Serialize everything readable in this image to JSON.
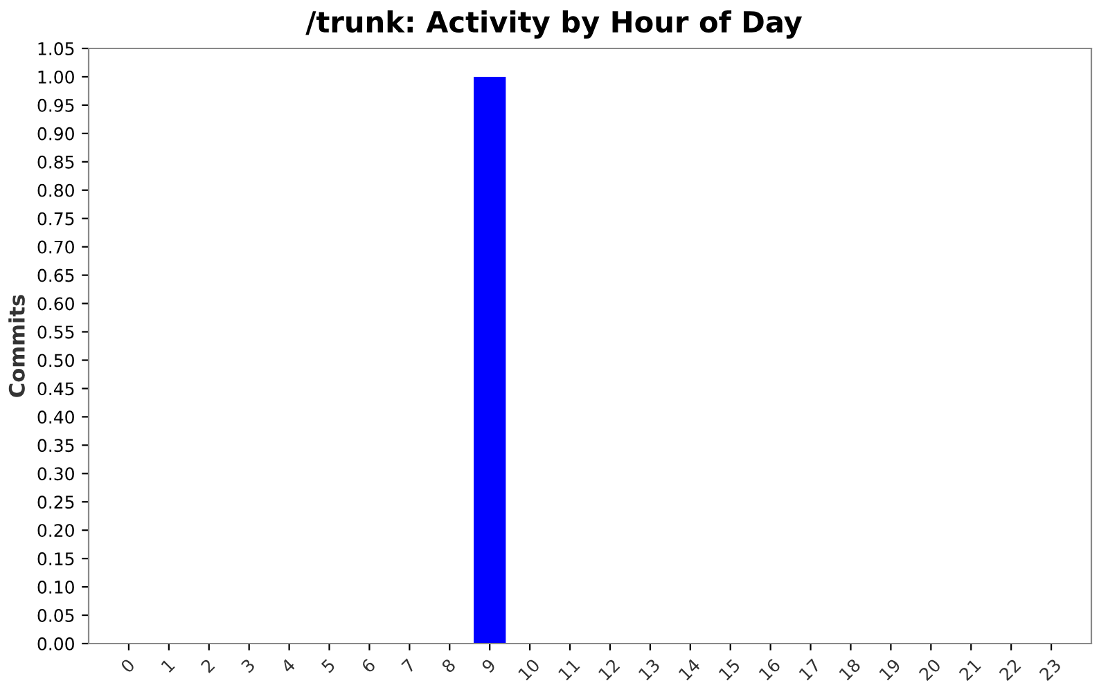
{
  "chart_data": {
    "type": "bar",
    "title": "/trunk: Activity by Hour of Day",
    "ylabel": "Commits",
    "categories": [
      "0",
      "1",
      "2",
      "3",
      "4",
      "5",
      "6",
      "7",
      "8",
      "9",
      "10",
      "11",
      "12",
      "13",
      "14",
      "15",
      "16",
      "17",
      "18",
      "19",
      "20",
      "21",
      "22",
      "23"
    ],
    "values": [
      0,
      0,
      0,
      0,
      0,
      0,
      0,
      0,
      0,
      1,
      0,
      0,
      0,
      0,
      0,
      0,
      0,
      0,
      0,
      0,
      0,
      0,
      0,
      0
    ],
    "color": "#0000ff",
    "ylim": [
      0,
      1.05
    ],
    "yticks": [
      {
        "value": 0,
        "label": "0.00"
      },
      {
        "value": 0.05,
        "label": "0.05"
      },
      {
        "value": 0.1,
        "label": "0.10"
      },
      {
        "value": 0.15,
        "label": "0.15"
      },
      {
        "value": 0.2,
        "label": "0.20"
      },
      {
        "value": 0.25,
        "label": "0.25"
      },
      {
        "value": 0.3,
        "label": "0.30"
      },
      {
        "value": 0.35,
        "label": "0.35"
      },
      {
        "value": 0.4,
        "label": "0.40"
      },
      {
        "value": 0.45,
        "label": "0.45"
      },
      {
        "value": 0.5,
        "label": "0.50"
      },
      {
        "value": 0.55,
        "label": "0.55"
      },
      {
        "value": 0.6,
        "label": "0.60"
      },
      {
        "value": 0.65,
        "label": "0.65"
      },
      {
        "value": 0.7,
        "label": "0.70"
      },
      {
        "value": 0.75,
        "label": "0.75"
      },
      {
        "value": 0.8,
        "label": "0.80"
      },
      {
        "value": 0.85,
        "label": "0.85"
      },
      {
        "value": 0.9,
        "label": "0.90"
      },
      {
        "value": 0.95,
        "label": "0.95"
      },
      {
        "value": 1,
        "label": "1.00"
      },
      {
        "value": 1.05,
        "label": "1.05"
      }
    ],
    "grid": false,
    "legend": false
  }
}
